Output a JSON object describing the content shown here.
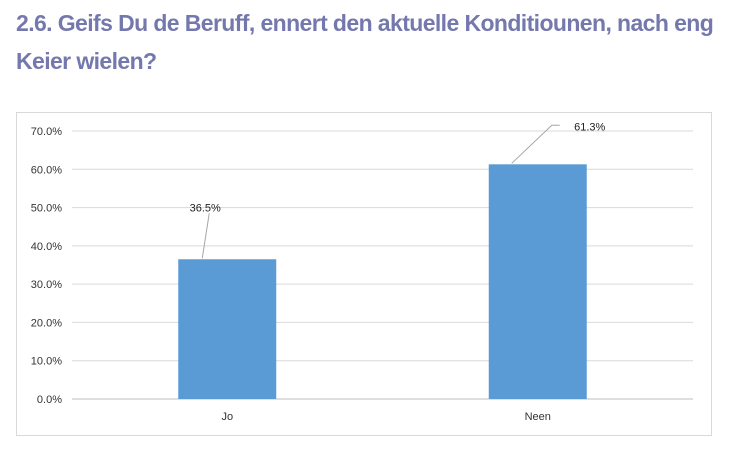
{
  "question": {
    "title": "2.6. Geifs Du de Beruff, ennert den aktuelle Konditiounen, nach eng Keier wielen?"
  },
  "chart_data": {
    "type": "bar",
    "title": "",
    "categories": [
      "Jo",
      "Neen"
    ],
    "values": [
      36.5,
      61.3
    ],
    "value_labels": [
      "36.5%",
      "61.3%"
    ],
    "ylim": [
      0,
      70
    ],
    "yticks": [
      0,
      10,
      20,
      30,
      40,
      50,
      60,
      70
    ],
    "ytick_labels": [
      "0.0%",
      "10.0%",
      "20.0%",
      "30.0%",
      "40.0%",
      "50.0%",
      "60.0%",
      "70.0%"
    ],
    "xlabel": "",
    "ylabel": "",
    "grid": true,
    "legend": "none",
    "bar_color": "#5b9bd5",
    "grid_color": "#d9d9d9"
  }
}
